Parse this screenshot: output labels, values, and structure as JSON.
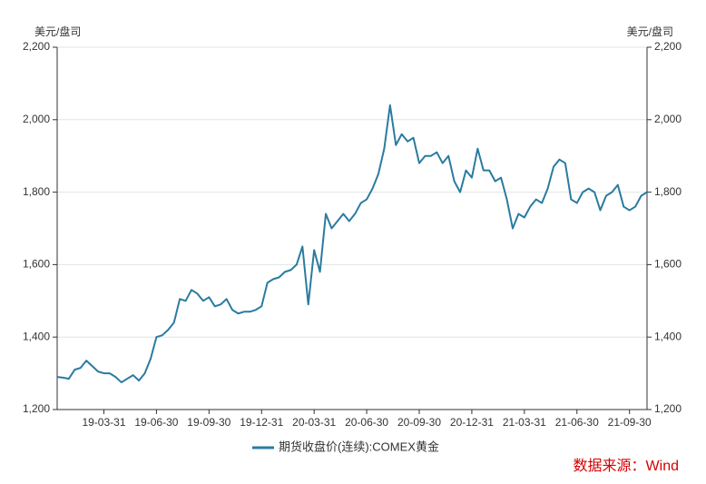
{
  "chart_data": {
    "type": "line",
    "y_label": "美元/盘司",
    "y2_label": "美元/盘司",
    "source": "数据来源：Wind",
    "categories": [
      null,
      null,
      null,
      null,
      null,
      null,
      null,
      null,
      "19-03-31",
      null,
      null,
      null,
      null,
      null,
      null,
      null,
      null,
      "19-06-30",
      null,
      null,
      null,
      null,
      null,
      null,
      null,
      null,
      "19-09-30",
      null,
      null,
      null,
      null,
      null,
      null,
      null,
      null,
      "19-12-31",
      null,
      null,
      null,
      null,
      null,
      null,
      null,
      null,
      "20-03-31",
      null,
      null,
      null,
      null,
      null,
      null,
      null,
      null,
      "20-06-30",
      null,
      null,
      null,
      null,
      null,
      null,
      null,
      null,
      "20-09-30",
      null,
      null,
      null,
      null,
      null,
      null,
      null,
      null,
      "20-12-31",
      null,
      null,
      null,
      null,
      null,
      null,
      null,
      null,
      "21-03-31",
      null,
      null,
      null,
      null,
      null,
      null,
      null,
      null,
      "21-06-30",
      null,
      null,
      null,
      null,
      null,
      null,
      null,
      null,
      "21-09-30",
      null,
      null,
      null
    ],
    "series": [
      {
        "name": "期货收盘价(连续):COMEX黄金",
        "color": "#2a7ba0",
        "values": [
          1290,
          1288,
          1285,
          1310,
          1315,
          1335,
          1320,
          1305,
          1300,
          1300,
          1290,
          1275,
          1285,
          1295,
          1280,
          1300,
          1340,
          1400,
          1405,
          1420,
          1440,
          1505,
          1500,
          1530,
          1520,
          1500,
          1510,
          1485,
          1490,
          1505,
          1475,
          1465,
          1470,
          1470,
          1475,
          1485,
          1550,
          1560,
          1565,
          1580,
          1585,
          1600,
          1650,
          1490,
          1640,
          1580,
          1740,
          1700,
          1720,
          1740,
          1720,
          1740,
          1770,
          1780,
          1810,
          1850,
          1920,
          2040,
          1930,
          1960,
          1940,
          1950,
          1880,
          1900,
          1900,
          1910,
          1880,
          1900,
          1830,
          1800,
          1860,
          1840,
          1920,
          1860,
          1860,
          1830,
          1840,
          1780,
          1700,
          1740,
          1730,
          1760,
          1780,
          1770,
          1810,
          1870,
          1890,
          1880,
          1780,
          1770,
          1800,
          1810,
          1800,
          1750,
          1790,
          1800,
          1820,
          1760,
          1750,
          1760,
          1790,
          1800
        ]
      }
    ],
    "ylim": [
      1200,
      2200
    ],
    "yticks": [
      {
        "value": 1200,
        "label": "1,200"
      },
      {
        "value": 1400,
        "label": "1,400"
      },
      {
        "value": 1600,
        "label": "1,600"
      },
      {
        "value": 1800,
        "label": "1,800"
      },
      {
        "value": 2000,
        "label": "2,000"
      },
      {
        "value": 2200,
        "label": "2,200"
      }
    ],
    "y2lim": [
      1200,
      2200
    ],
    "y2ticks": [
      {
        "value": 1200,
        "label": "1,200"
      },
      {
        "value": 1400,
        "label": "1,400"
      },
      {
        "value": 1600,
        "label": "1,600"
      },
      {
        "value": 1800,
        "label": "1,800"
      },
      {
        "value": 2000,
        "label": "2,000"
      },
      {
        "value": 2200,
        "label": "2,200"
      }
    ],
    "grid": true
  }
}
